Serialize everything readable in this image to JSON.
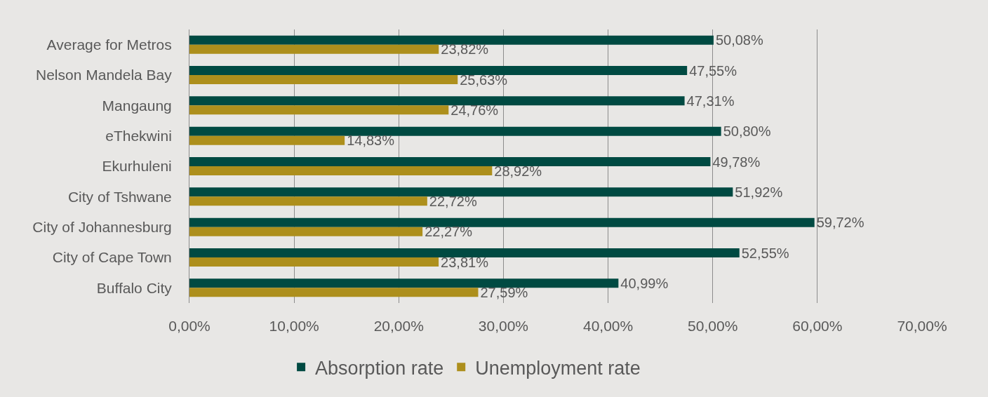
{
  "chart_data": {
    "type": "bar",
    "orientation": "horizontal",
    "categories": [
      "Average for Metros",
      "Nelson Mandela Bay",
      "Mangaung",
      "eThekwini",
      "Ekurhuleni",
      "City of Tshwane",
      "City of Johannesburg",
      "City of Cape Town",
      "Buffalo City"
    ],
    "series": [
      {
        "name": "Absorption rate",
        "color": "#004a42",
        "values": [
          50.08,
          47.55,
          47.31,
          50.8,
          49.78,
          51.92,
          59.72,
          52.55,
          40.99
        ],
        "value_labels": [
          "50,08%",
          "47,55%",
          "47,31%",
          "50,80%",
          "49,78%",
          "51,92%",
          "59,72%",
          "52,55%",
          "40,99%"
        ]
      },
      {
        "name": "Unemployment rate",
        "color": "#ad8f1c",
        "values": [
          23.82,
          25.63,
          24.76,
          14.83,
          28.92,
          22.72,
          22.27,
          23.81,
          27.59
        ],
        "value_labels": [
          "23,82%",
          "25,63%",
          "24,76%",
          "14,83%",
          "28,92%",
          "22,72%",
          "22,27%",
          "23,81%",
          "27,59%"
        ]
      }
    ],
    "xlim": [
      0,
      70
    ],
    "xticks": [
      {
        "value": 0,
        "label": "0,00%"
      },
      {
        "value": 10,
        "label": "10,00%"
      },
      {
        "value": 20,
        "label": "20,00%"
      },
      {
        "value": 30,
        "label": "30,00%"
      },
      {
        "value": 40,
        "label": "40,00%"
      },
      {
        "value": 50,
        "label": "50,00%"
      },
      {
        "value": 60,
        "label": "60,00%"
      },
      {
        "value": 70,
        "label": "70,00%"
      }
    ],
    "grid": "x",
    "legend": "bottom"
  }
}
